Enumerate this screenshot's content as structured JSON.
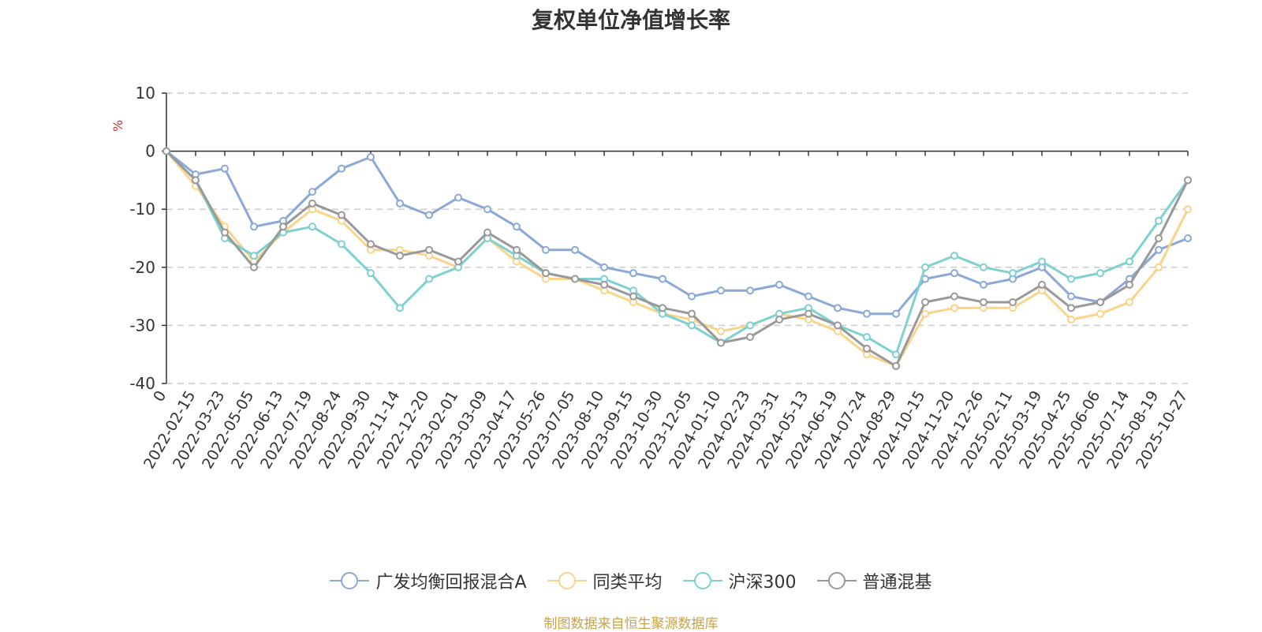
{
  "chart_data": {
    "type": "line",
    "title": "复权单位净值增长率",
    "ylabel": "%",
    "ylim": [
      -40,
      10
    ],
    "yticks": [
      10,
      0,
      -10,
      -20,
      -30,
      -40
    ],
    "grid": true,
    "legend_position": "bottom",
    "x_ticks": [
      "0",
      "2022-02-15",
      "2022-03-23",
      "2022-05-05",
      "2022-06-13",
      "2022-07-19",
      "2022-08-24",
      "2022-09-30",
      "2022-11-14",
      "2022-12-20",
      "2023-02-01",
      "2023-03-09",
      "2023-04-17",
      "2023-05-26",
      "2023-07-05",
      "2023-08-10",
      "2023-09-15",
      "2023-10-30",
      "2023-12-05",
      "2024-01-10",
      "2024-02-23",
      "2024-03-31",
      "2024-05-13",
      "2024-06-19",
      "2024-07-24",
      "2024-08-29",
      "2024-10-15",
      "2024-11-20",
      "2024-12-26",
      "2025-02-11",
      "2025-03-19",
      "2025-04-25",
      "2025-06-06",
      "2025-07-14",
      "2025-08-19",
      "2025-10-27"
    ],
    "series": [
      {
        "name": "广发均衡回报混合A",
        "color": "#8aa8d8",
        "values": [
          0,
          -4,
          -3,
          -13,
          -12,
          -7,
          -3,
          -1,
          -9,
          -11,
          -8,
          -10,
          -13,
          -17,
          -17,
          -20,
          -21,
          -22,
          -25,
          -24,
          -24,
          -23,
          -25,
          -27,
          -28,
          -28,
          -22,
          -21,
          -23,
          -22,
          -20,
          -25,
          -26,
          -22,
          -17,
          -15
        ]
      },
      {
        "name": "同类平均",
        "color": "#f9d48a",
        "values": [
          0,
          -6,
          -13,
          -19,
          -14,
          -10,
          -12,
          -17,
          -17,
          -18,
          -20,
          -15,
          -19,
          -22,
          -22,
          -24,
          -26,
          -28,
          -29,
          -31,
          -30,
          -28,
          -29,
          -31,
          -35,
          -37,
          -28,
          -27,
          -27,
          -27,
          -24,
          -29,
          -28,
          -26,
          -20,
          -10
        ]
      },
      {
        "name": "沪深300",
        "color": "#7fd0d0",
        "values": [
          0,
          -5,
          -15,
          -18,
          -14,
          -13,
          -16,
          -21,
          -27,
          -22,
          -20,
          -15,
          -18,
          -21,
          -22,
          -22,
          -24,
          -28,
          -30,
          -33,
          -30,
          -28,
          -27,
          -30,
          -32,
          -35,
          -20,
          -18,
          -20,
          -21,
          -19,
          -22,
          -21,
          -19,
          -12,
          -5
        ]
      },
      {
        "name": "普通混基",
        "color": "#999999",
        "values": [
          0,
          -5,
          -14,
          -20,
          -13,
          -9,
          -11,
          -16,
          -18,
          -17,
          -19,
          -14,
          -17,
          -21,
          -22,
          -23,
          -25,
          -27,
          -28,
          -33,
          -32,
          -29,
          -28,
          -30,
          -34,
          -37,
          -26,
          -25,
          -26,
          -26,
          -23,
          -27,
          -26,
          -23,
          -15,
          -5
        ]
      }
    ]
  },
  "source_text": "制图数据来自恒生聚源数据库"
}
